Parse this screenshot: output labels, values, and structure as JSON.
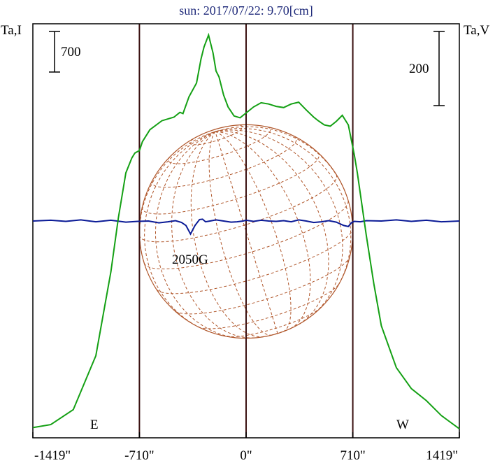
{
  "chart_data": {
    "type": "line",
    "title": "sun: 2017/07/22: 9.70[cm]",
    "ylabel_left": "Ta,I",
    "ylabel_right": "Ta,V",
    "x_ticks": [
      {
        "value": -1419,
        "label": "-1419\""
      },
      {
        "value": -710,
        "label": "-710\""
      },
      {
        "value": 0,
        "label": "0\""
      },
      {
        "value": 710,
        "label": "710\""
      },
      {
        "value": 1419,
        "label": "1419\""
      }
    ],
    "xlim": [
      -1419,
      1419
    ],
    "limb_markers": [
      {
        "x": -710,
        "label": "E"
      },
      {
        "x": 710,
        "label": "W"
      }
    ],
    "center_line_x": 0,
    "scale_bars": [
      {
        "side": "left",
        "value": 700,
        "label": "700"
      },
      {
        "side": "right",
        "value": 200,
        "label": "200"
      }
    ],
    "annotations": [
      {
        "text": "2050G",
        "x": -330
      }
    ],
    "solar_grid": true,
    "colors": {
      "intensity": "#14a014",
      "polarization": "#0a1a96",
      "grid": "#b0562a",
      "axes": "#3a1010",
      "title": "#1f2a7a"
    },
    "series": [
      {
        "name": "",
        "axis": "left",
        "unit": "Ta,I",
        "x": [
          -1419,
          -1300,
          -1150,
          -1000,
          -900,
          -850,
          -800,
          -760,
          -740,
          -720,
          -710,
          -690,
          -640,
          -560,
          -480,
          -440,
          -420,
          -380,
          -330,
          -300,
          -280,
          -250,
          -220,
          -200,
          -180,
          -150,
          -120,
          -80,
          -40,
          0,
          50,
          100,
          150,
          200,
          250,
          300,
          350,
          400,
          450,
          480,
          520,
          560,
          600,
          640,
          680,
          700,
          720,
          740,
          760,
          800,
          850,
          900,
          1000,
          1100,
          1200,
          1300,
          1419
        ],
        "values": [
          100,
          150,
          400,
          1300,
          2700,
          3600,
          4350,
          4600,
          4680,
          4710,
          4720,
          4870,
          5070,
          5220,
          5280,
          5360,
          5340,
          5620,
          5850,
          6250,
          6450,
          6650,
          6350,
          6050,
          5950,
          5650,
          5450,
          5300,
          5270,
          5350,
          5450,
          5520,
          5500,
          5460,
          5440,
          5500,
          5530,
          5400,
          5280,
          5220,
          5150,
          5130,
          5210,
          5310,
          5150,
          4900,
          4650,
          4350,
          4000,
          3300,
          2500,
          1800,
          1100,
          750,
          550,
          300,
          80
        ]
      },
      {
        "name": "",
        "axis": "right",
        "unit": "Ta,V",
        "x": [
          -1419,
          -1300,
          -1200,
          -1100,
          -1000,
          -900,
          -800,
          -720,
          -650,
          -580,
          -520,
          -470,
          -430,
          -400,
          -370,
          -340,
          -310,
          -290,
          -270,
          -240,
          -200,
          -150,
          -100,
          -60,
          -20,
          0,
          50,
          100,
          150,
          200,
          250,
          300,
          350,
          400,
          450,
          500,
          550,
          600,
          650,
          680,
          700,
          720,
          760,
          800,
          900,
          1000,
          1100,
          1200,
          1300,
          1419
        ],
        "values": [
          0,
          2,
          -1,
          3,
          -2,
          2,
          -3,
          -1,
          0,
          -5,
          -2,
          1,
          -4,
          -12,
          -35,
          -12,
          4,
          5,
          -2,
          0,
          3,
          0,
          -3,
          -2,
          0,
          2,
          -1,
          2,
          0,
          -1,
          1,
          -2,
          3,
          0,
          -4,
          -2,
          1,
          -3,
          -12,
          -15,
          -5,
          -1,
          -2,
          1,
          0,
          3,
          -1,
          2,
          -2,
          0
        ]
      }
    ]
  }
}
